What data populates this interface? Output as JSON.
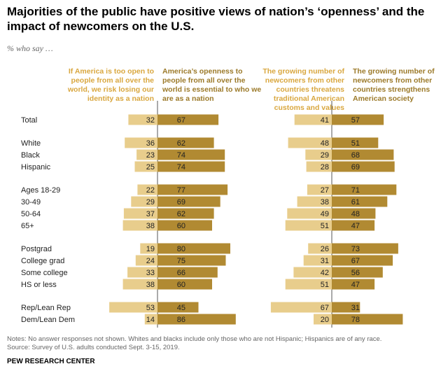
{
  "title": "Majorities of the public have positive views of nation’s ‘openness’ and the impact of newcomers on the U.S.",
  "subtitle": "% who say …",
  "colors": {
    "light": "#e8cd8c",
    "dark": "#b18a32",
    "light_text": "#d9a73f",
    "dark_text": "#9c7a2a"
  },
  "headers": {
    "left_negative": "If America is too open to people from all over the world, we risk losing our identity as a nation",
    "left_positive": "America’s openness to people from all over the world is essential to who we are as a nation",
    "right_negative": "The growing number of newcomers from other countries threatens traditional American customs and values",
    "right_positive": "The growing number of newcomers from other countries strengthens American society"
  },
  "chart_data": {
    "type": "bar",
    "categories": [
      "Total",
      "White",
      "Black",
      "Hispanic",
      "Ages 18-29",
      "30-49",
      "50-64",
      "65+",
      "Postgrad",
      "College grad",
      "Some college",
      "HS or less",
      "Rep/Lean Rep",
      "Dem/Lean Dem"
    ],
    "groups": [
      [
        0
      ],
      [
        1,
        2,
        3
      ],
      [
        4,
        5,
        6,
        7
      ],
      [
        8,
        9,
        10,
        11
      ],
      [
        12,
        13
      ]
    ],
    "openness": {
      "risk_losing_identity": [
        32,
        36,
        23,
        25,
        22,
        29,
        37,
        38,
        19,
        24,
        33,
        38,
        53,
        14
      ],
      "essential_to_who_we_are": [
        67,
        62,
        74,
        74,
        77,
        69,
        62,
        60,
        80,
        75,
        66,
        60,
        45,
        86
      ]
    },
    "newcomers": {
      "threatens_customs": [
        41,
        48,
        29,
        28,
        27,
        38,
        49,
        51,
        26,
        31,
        42,
        51,
        67,
        20
      ],
      "strengthens_society": [
        57,
        51,
        68,
        69,
        71,
        61,
        48,
        47,
        73,
        67,
        56,
        47,
        31,
        78
      ]
    }
  },
  "notes": "Notes: No answer responses not shown. Whites and blacks include only those who are not Hispanic; Hispanics are of any race.",
  "source": "Source: Survey of U.S. adults conducted Sept. 3-15, 2019.",
  "brand": "PEW RESEARCH CENTER"
}
